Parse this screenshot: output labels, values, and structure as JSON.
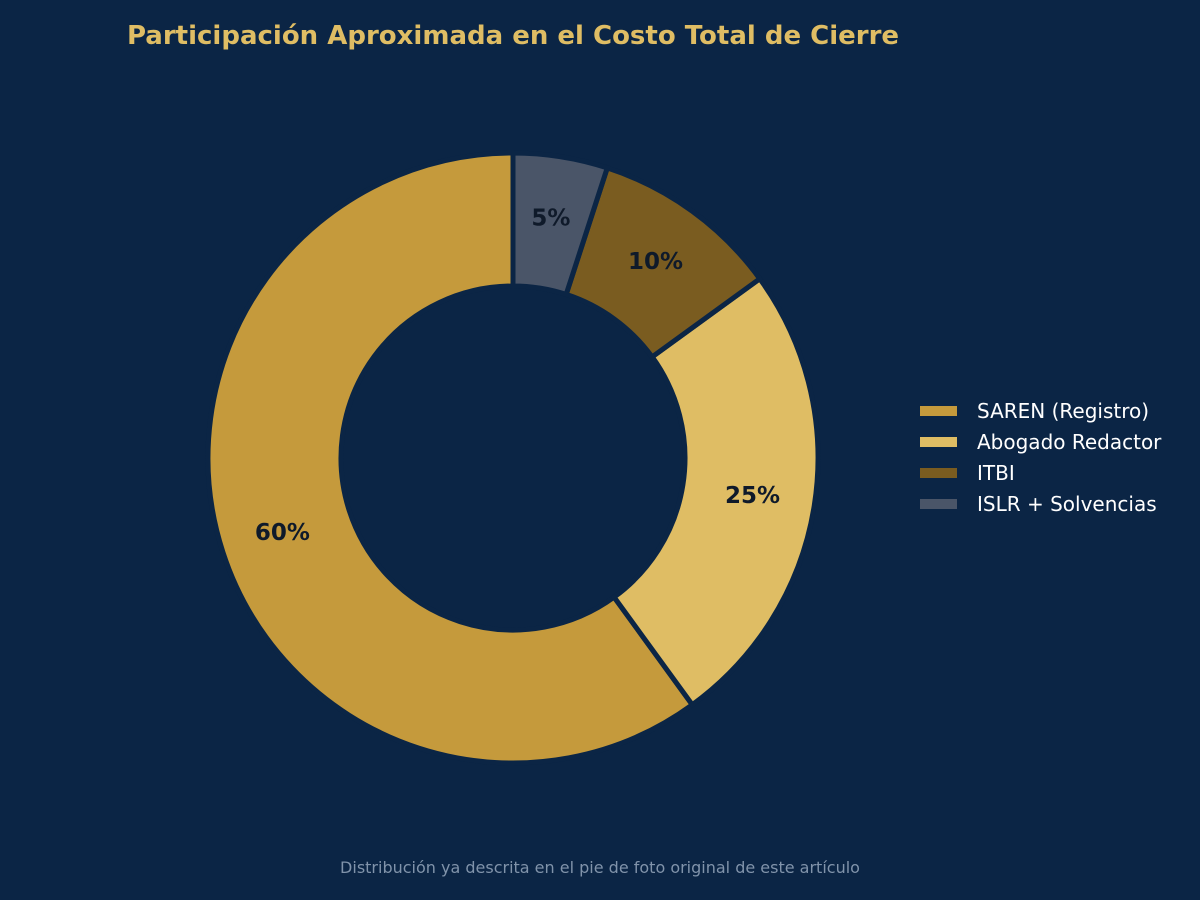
{
  "chart_data": {
    "type": "pie",
    "variant": "donut",
    "title": "Participación Aproximada en el Costo Total de Cierre",
    "start": "top",
    "direction": "counterclockwise",
    "categories": [
      "SAREN (Registro)",
      "Abogado Redactor",
      "ITBI",
      "ISLR + Solvencias"
    ],
    "values": [
      60,
      25,
      10,
      5
    ],
    "labels": [
      "60%",
      "25%",
      "10%",
      "5%"
    ],
    "colors": [
      "#c59a3c",
      "#dfbd64",
      "#7a5c20",
      "#4a5568"
    ],
    "legend": {
      "placement": "right",
      "entries": [
        "SAREN (Registro)",
        "Abogado Redactor",
        "ITBI",
        "ISLR + Solvencias"
      ]
    }
  },
  "footnote": "Distribución ya descrita en el pie de foto original de este artículo",
  "colors": {
    "background": "#0b2545",
    "title": "#dfbd64",
    "slice_label": "#0f1a2a",
    "legend_text": "#ffffff",
    "footnote": "#8093aa"
  }
}
